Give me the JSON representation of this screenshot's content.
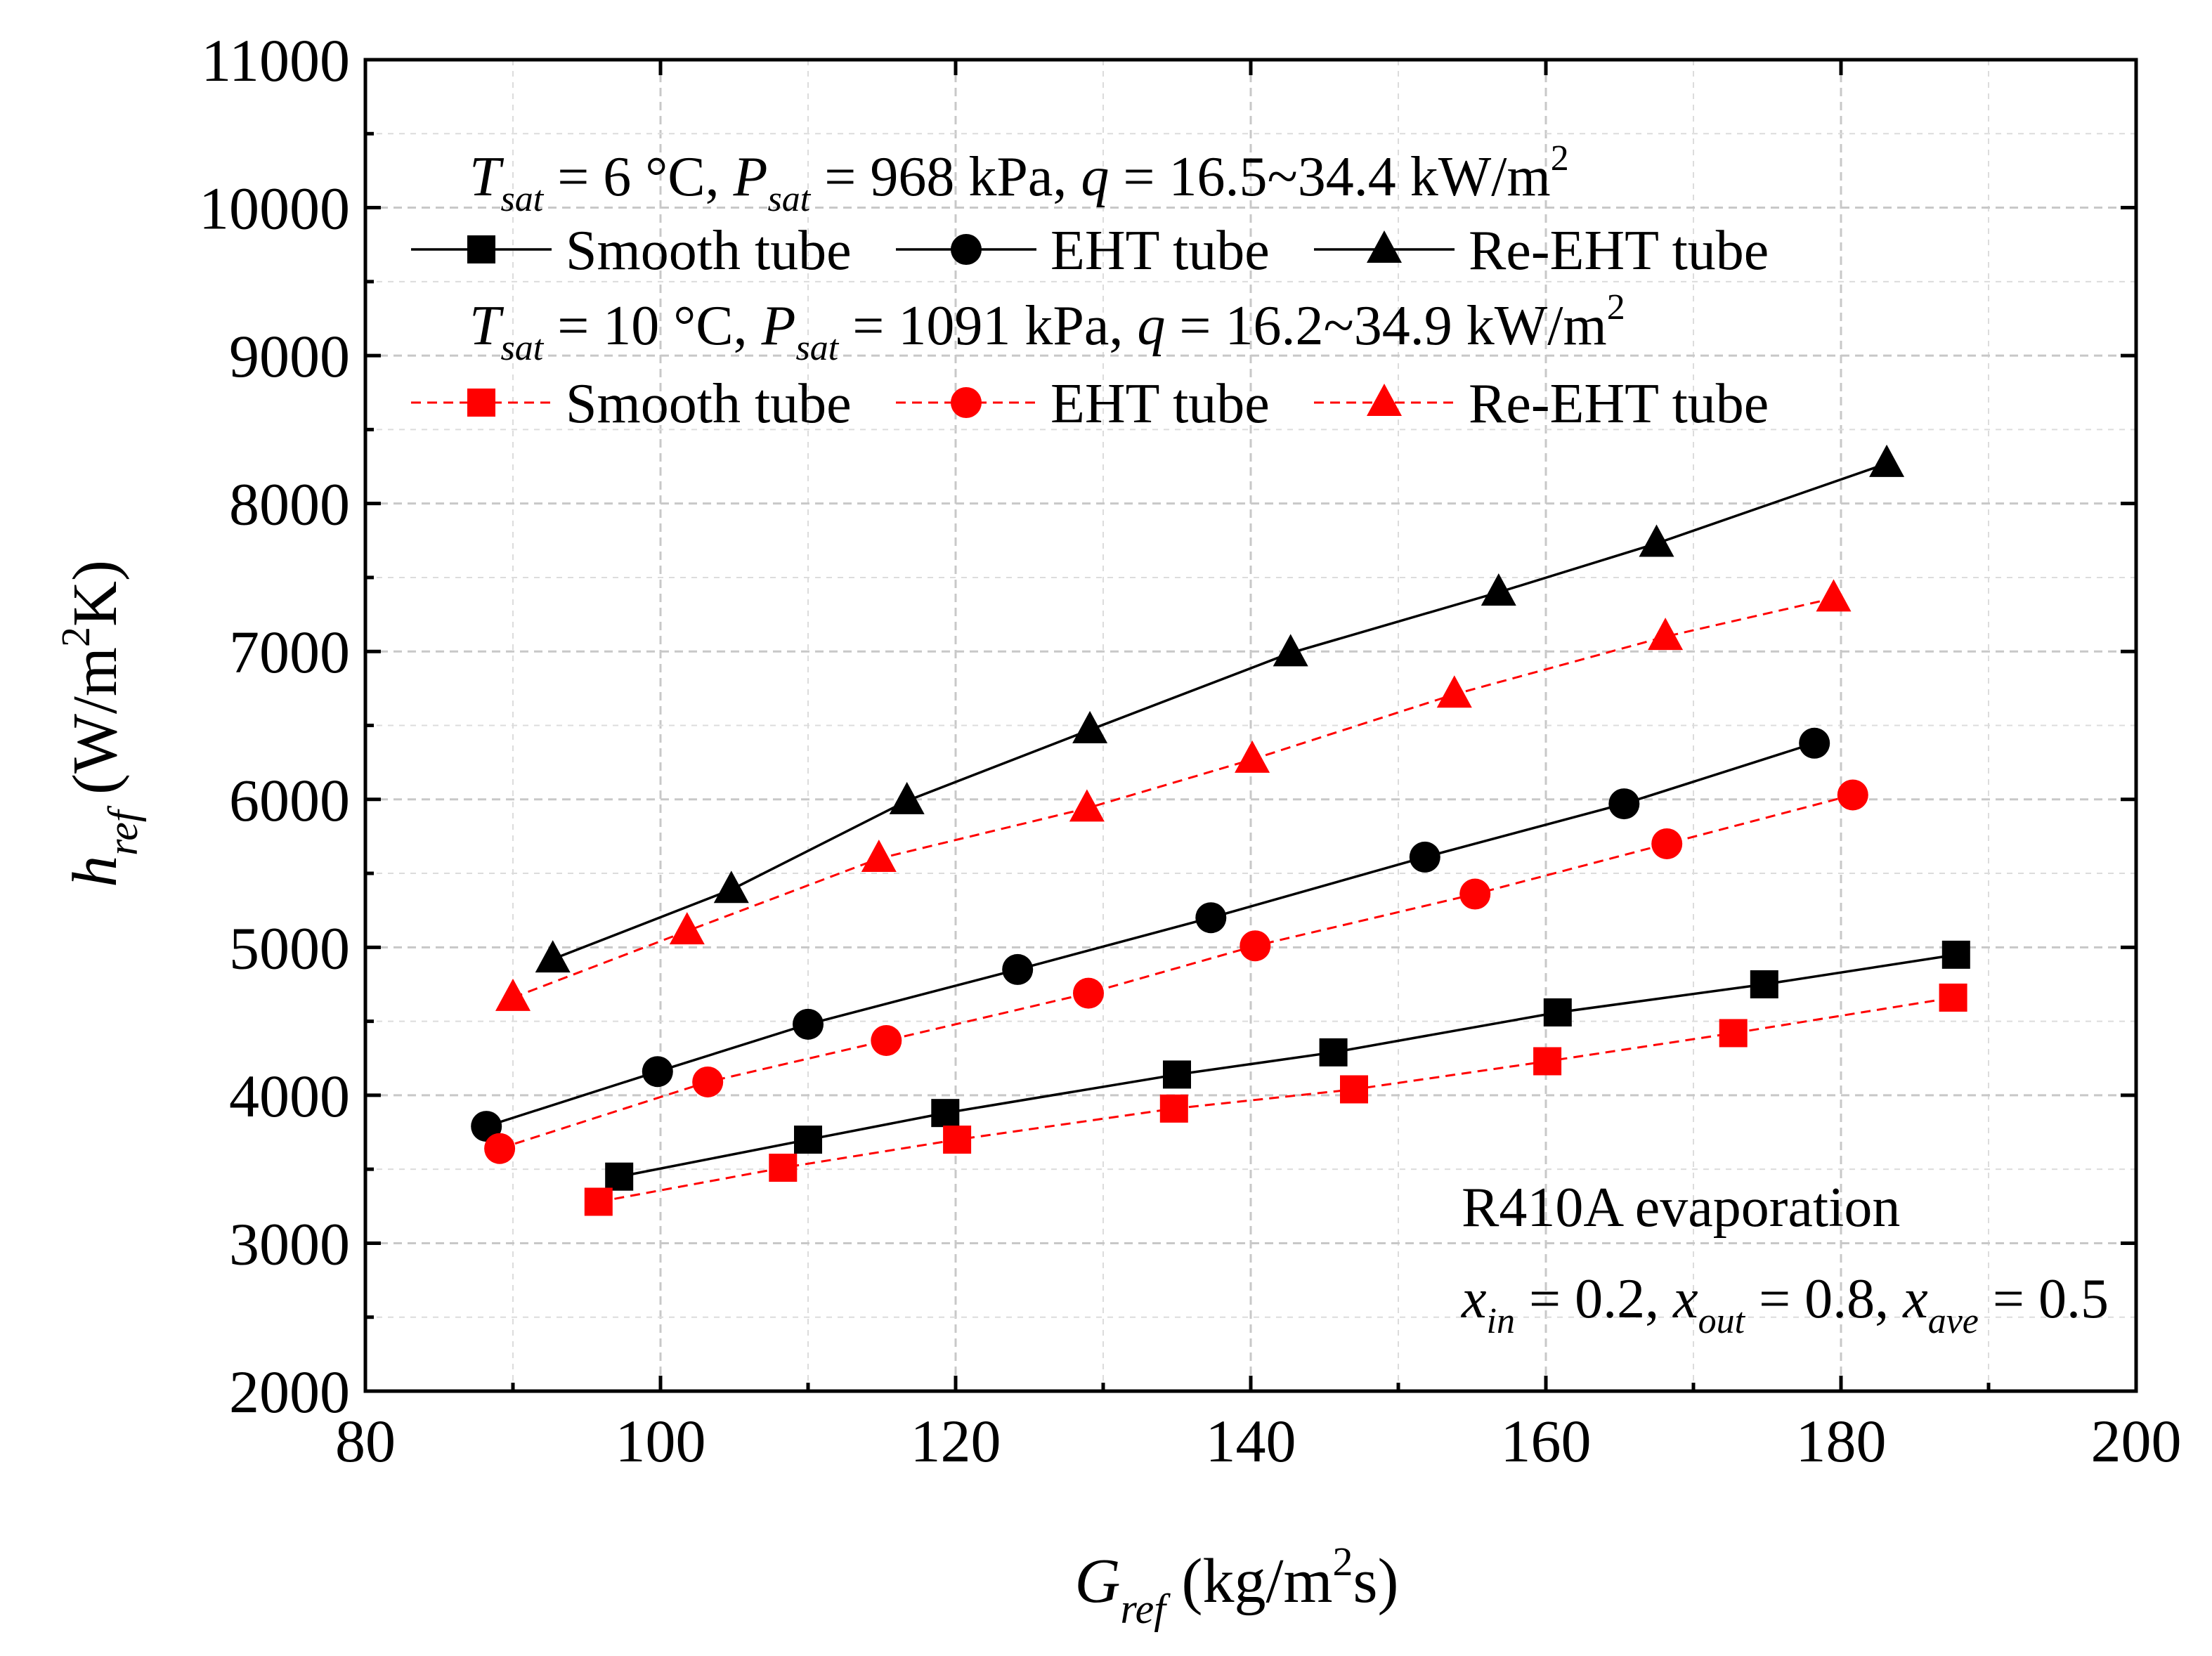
{
  "chart_data": {
    "type": "line",
    "xlabel": {
      "main": "G",
      "sub": "ref",
      "unit_pre": " (kg/m",
      "unit_sup": "2",
      "unit_post": "s)"
    },
    "ylabel": {
      "main": "h",
      "sub": "ref",
      "unit_pre": " (W/m",
      "unit_sup": "2",
      "unit_post": "K)"
    },
    "xlim": [
      80,
      200
    ],
    "ylim": [
      2000,
      11000
    ],
    "x_ticks": [
      "80",
      "100",
      "120",
      "140",
      "160",
      "180",
      "200"
    ],
    "y_ticks": [
      "2000",
      "3000",
      "4000",
      "5000",
      "6000",
      "7000",
      "8000",
      "9000",
      "10000",
      "11000"
    ],
    "grid": true,
    "legend_placement": "top-left",
    "conditions": [
      {
        "T": "T",
        "T_sub": "sat",
        "T_val": " = 6 °C, ",
        "P": "P",
        "P_sub": "sat",
        "P_val": " = 968 kPa, ",
        "q": "q",
        "q_val": " = 16.5~34.4 kW/m",
        "q_sup": "2"
      },
      {
        "T": "T",
        "T_sub": "sat",
        "T_val": " = 10 °C, ",
        "P": "P",
        "P_sub": "sat",
        "P_val": " = 1091 kPa, ",
        "q": "q",
        "q_val": " = 16.2~34.9 kW/m",
        "q_sup": "2"
      }
    ],
    "annotation": {
      "line1": "R410A evaporation",
      "x_in": "x",
      "in_sub": "in",
      "in_val": " = 0.2, ",
      "x_out": "x",
      "out_sub": "out",
      "out_val": " = 0.8, ",
      "x_ave": "x",
      "ave_sub": "ave",
      "ave_val": " = 0.5"
    },
    "series": [
      {
        "name": "Smooth tube",
        "group": 0,
        "marker": "square",
        "color": "#000000",
        "dashed": false,
        "x": [
          97.2,
          110,
          119.3,
          135,
          145.6,
          160.8,
          174.8,
          187.8
        ],
        "y": [
          3450,
          3700,
          3880,
          4140,
          4290,
          4560,
          4750,
          4950
        ]
      },
      {
        "name": "EHT tube",
        "group": 0,
        "marker": "circle",
        "color": "#000000",
        "dashed": false,
        "x": [
          88.2,
          99.8,
          110,
          124.2,
          137.3,
          151.8,
          165.3,
          178.2
        ],
        "y": [
          3790,
          4160,
          4480,
          4850,
          5200,
          5610,
          5970,
          6380
        ]
      },
      {
        "name": "Re-EHT tube",
        "group": 0,
        "marker": "triangle",
        "color": "#000000",
        "dashed": false,
        "x": [
          92.7,
          104.8,
          116.7,
          129.1,
          142.7,
          156.8,
          167.5,
          183.1
        ],
        "y": [
          4920,
          5390,
          5990,
          6470,
          6990,
          7400,
          7730,
          8270
        ]
      },
      {
        "name": "Smooth tube",
        "group": 1,
        "marker": "square",
        "color": "#ff0000",
        "dashed": true,
        "x": [
          95.8,
          108.3,
          120.1,
          134.8,
          147,
          160.1,
          172.7,
          187.6
        ],
        "y": [
          3280,
          3510,
          3700,
          3910,
          4040,
          4230,
          4420,
          4660
        ]
      },
      {
        "name": "EHT tube",
        "group": 1,
        "marker": "circle",
        "color": "#ff0000",
        "dashed": true,
        "x": [
          89.1,
          103.2,
          115.3,
          129,
          140.3,
          155.2,
          168.2,
          180.8
        ],
        "y": [
          3640,
          4090,
          4370,
          4690,
          5010,
          5360,
          5700,
          6030
        ]
      },
      {
        "name": "Re-EHT tube",
        "group": 1,
        "marker": "triangle",
        "color": "#ff0000",
        "dashed": true,
        "x": [
          90,
          101.8,
          114.8,
          128.9,
          140.1,
          153.8,
          168.1,
          179.5
        ],
        "y": [
          4660,
          5110,
          5600,
          5940,
          6270,
          6710,
          7100,
          7360
        ]
      }
    ]
  }
}
